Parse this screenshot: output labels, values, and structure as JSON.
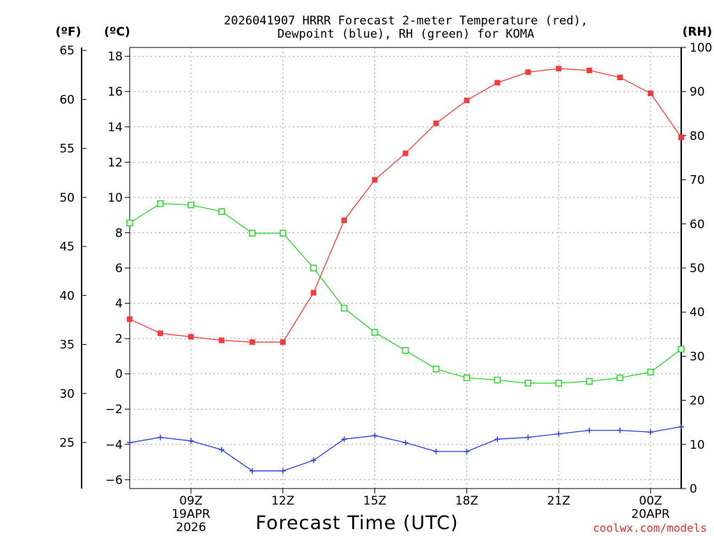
{
  "chart_data": {
    "type": "line",
    "title_line1": "2026041907 HRRR Forecast 2-meter Temperature (red),",
    "title_line2": "Dewpoint (blue), RH (green) for KOMA",
    "xlabel": "Forecast Time (UTC)",
    "credit": "coolwx.com/models",
    "units": {
      "fahrenheit": "(ºF)",
      "celsius": "(ºC)",
      "rh": "(RH)"
    },
    "x_hours": [
      7,
      8,
      9,
      10,
      11,
      12,
      13,
      14,
      15,
      16,
      17,
      18,
      19,
      20,
      21,
      22,
      23,
      24,
      25
    ],
    "xlim": [
      7,
      25
    ],
    "x_ticks": [
      {
        "hour": 9,
        "label": "09Z",
        "sub1": "19APR",
        "sub2": "2026"
      },
      {
        "hour": 12,
        "label": "12Z"
      },
      {
        "hour": 15,
        "label": "15Z"
      },
      {
        "hour": 18,
        "label": "18Z"
      },
      {
        "hour": 21,
        "label": "21Z"
      },
      {
        "hour": 24,
        "label": "00Z",
        "sub1": "20APR"
      }
    ],
    "celsius_axis": {
      "range": [
        -6.5,
        18.5
      ],
      "ticks": [
        -6,
        -4,
        -2,
        0,
        2,
        4,
        6,
        8,
        10,
        12,
        14,
        16,
        18
      ]
    },
    "fahrenheit_axis": {
      "ticks": [
        25,
        30,
        35,
        40,
        45,
        50,
        55,
        60,
        65
      ]
    },
    "rh_axis": {
      "range": [
        0,
        100
      ],
      "ticks": [
        0,
        10,
        20,
        30,
        40,
        50,
        60,
        70,
        80,
        90,
        100
      ]
    },
    "series": [
      {
        "name": "2-meter Temperature",
        "axis": "celsius",
        "color": "#f03c3c",
        "marker": "filled-square",
        "values": [
          3.1,
          2.3,
          2.1,
          1.9,
          1.8,
          1.8,
          4.6,
          8.7,
          11.0,
          12.5,
          14.2,
          15.5,
          16.5,
          17.1,
          17.3,
          17.2,
          16.8,
          15.9,
          13.4
        ]
      },
      {
        "name": "Dewpoint",
        "axis": "celsius",
        "color": "#2a3ce8",
        "marker": "plus",
        "values": [
          -3.9,
          -3.6,
          -3.8,
          -4.3,
          -5.5,
          -5.5,
          -4.9,
          -3.7,
          -3.5,
          -3.9,
          -4.4,
          -4.4,
          -3.7,
          -3.6,
          -3.4,
          -3.2,
          -3.2,
          -3.3,
          -3.0
        ]
      },
      {
        "name": "Relative Humidity",
        "axis": "rh",
        "color": "#22d822",
        "marker": "open-square",
        "values": [
          60.2,
          64.6,
          64.3,
          62.8,
          57.9,
          57.9,
          50.0,
          40.9,
          35.4,
          31.3,
          27.1,
          25.1,
          24.6,
          23.9,
          23.9,
          24.3,
          25.1,
          26.4,
          31.6
        ]
      }
    ]
  }
}
